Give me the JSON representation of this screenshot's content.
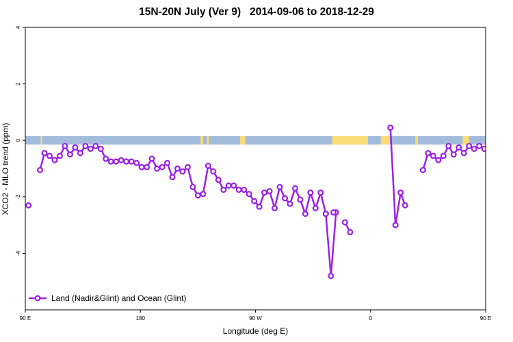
{
  "chart_data": {
    "type": "line",
    "title": "15N-20N July (Ver 9)   2014-09-06 to 2018-12-29",
    "xlabel": "Longitude (deg E)",
    "ylabel": "XCO2 - MLO trend (ppm)",
    "xlim": [
      90,
      450
    ],
    "ylim": [
      -6,
      4
    ],
    "x_ticks": [
      {
        "value": 90,
        "label": "90 E"
      },
      {
        "value": 180,
        "label": "180"
      },
      {
        "value": 270,
        "label": "90 W"
      },
      {
        "value": 360,
        "label": "0"
      },
      {
        "value": 450,
        "label": "90 E"
      },
      {
        "value": 540,
        "label": "180"
      }
    ],
    "y_ticks": [
      {
        "value": -4,
        "label": "-4"
      },
      {
        "value": -2,
        "label": "-2"
      },
      {
        "value": 0,
        "label": "0"
      },
      {
        "value": 2,
        "label": "2"
      },
      {
        "value": 4,
        "label": "4"
      }
    ],
    "land_ocean_strip": {
      "y_range": [
        -0.15,
        0.15
      ],
      "ocean_color": "#a4bcdc",
      "land_color": "#fadc78",
      "land_segments": [
        [
          102,
          103
        ],
        [
          227,
          229
        ],
        [
          232,
          233.5
        ],
        [
          258,
          262
        ],
        [
          330,
          358
        ],
        [
          368,
          375
        ],
        [
          395,
          397
        ],
        [
          432,
          437
        ]
      ]
    },
    "series": [
      {
        "name": "Land (Nadir&Glint) and Ocean (Glint)",
        "color": "#9a1fe6",
        "segments": [
          {
            "x": [
              92.5
            ],
            "y": [
              -2.3
            ]
          },
          {
            "x": [
              101.5,
              105,
              109,
              113,
              117,
              121,
              125,
              129,
              133,
              137,
              141,
              145,
              149,
              153,
              157,
              161,
              165,
              169,
              173,
              177,
              181,
              185,
              189,
              193,
              197,
              201,
              205,
              209,
              213,
              217,
              221,
              225,
              229,
              233,
              237,
              241,
              245,
              249,
              253,
              257,
              261,
              265,
              269,
              273,
              277,
              281,
              285,
              289,
              293,
              297,
              301,
              305,
              309,
              313,
              317,
              321,
              325
            ],
            "y": [
              -1.05,
              -0.45,
              -0.55,
              -0.7,
              -0.55,
              -0.2,
              -0.5,
              -0.25,
              -0.45,
              -0.2,
              -0.3,
              -0.2,
              -0.3,
              -0.65,
              -0.75,
              -0.75,
              -0.7,
              -0.75,
              -0.75,
              -0.8,
              -0.95,
              -0.95,
              -0.65,
              -1.0,
              -0.95,
              -0.8,
              -1.3,
              -1.0,
              -1.1,
              -0.95,
              -1.65,
              -1.95,
              -1.9,
              -0.9,
              -1.1,
              -1.4,
              -1.75,
              -1.6,
              -1.6,
              -1.75,
              -1.75,
              -1.9,
              -2.15,
              -2.35,
              -1.85,
              -1.8,
              -2.4,
              -1.65,
              -2.05,
              -2.25,
              -1.7,
              -2.1,
              -2.6,
              -1.85,
              -2.4,
              -1.85,
              -2.6
            ]
          },
          {
            "x": [
              325,
              329,
              333
            ],
            "y": [
              -2.6,
              -4.8,
              -2.55
            ]
          },
          {
            "x": [
              331
            ],
            "y": [
              -2.55
            ]
          },
          {
            "x": [
              340,
              344
            ],
            "y": [
              -2.9,
              -3.25
            ]
          },
          {
            "x": [
              375.5,
              379.5,
              383.5,
              387
            ],
            "y": [
              0.45,
              -3.0,
              -1.85,
              -2.3
            ]
          },
          {
            "x": [
              401,
              405,
              409,
              413,
              417,
              421,
              425,
              429,
              433,
              437,
              441,
              445,
              449,
              453,
              457,
              461,
              465,
              469,
              473,
              477,
              481,
              485,
              489,
              493,
              497,
              501,
              505,
              509,
              513,
              517,
              521,
              525,
              529,
              533,
              537
            ],
            "y": [
              -1.05,
              -0.45,
              -0.55,
              -0.7,
              -0.55,
              -0.2,
              -0.5,
              -0.25,
              -0.45,
              -0.2,
              -0.3,
              -0.2,
              -0.3,
              -0.65,
              -0.75,
              -0.75,
              -0.7,
              -0.75,
              -0.75,
              -0.8,
              -0.95,
              -0.95,
              -0.65,
              -1.0,
              -0.95,
              -0.8,
              -1.3,
              -1.0,
              -1.1,
              -0.95,
              -1.65,
              -1.95,
              -1.9,
              -0.9,
              -1.1
            ]
          }
        ]
      }
    ],
    "legend": {
      "position": "bottom-left",
      "entries": [
        "Land (Nadir&Glint) and Ocean (Glint)"
      ]
    }
  }
}
